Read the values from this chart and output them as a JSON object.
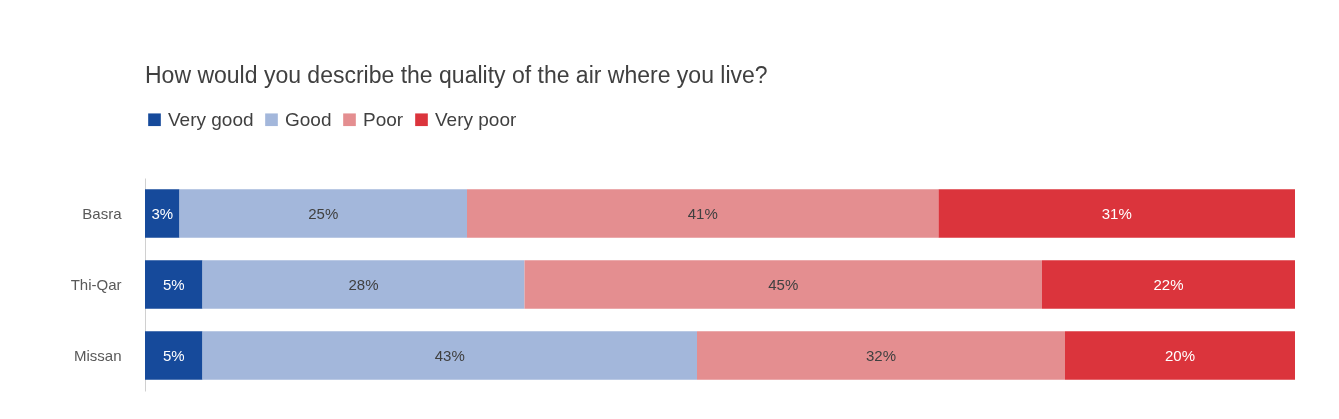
{
  "chart_data": {
    "type": "bar",
    "title": "How would you describe the quality of the air where you live?",
    "orientation": "horizontal",
    "stacked": true,
    "legend": "top left",
    "tick_labels": "y",
    "categories": [
      "Basra",
      "Thi-Qar",
      "Missan"
    ],
    "series": [
      {
        "name": "Very good",
        "color": "#164a9b",
        "values": [
          3,
          5,
          5
        ],
        "value_labels": [
          "3%",
          "5%",
          "5%"
        ]
      },
      {
        "name": "Good",
        "color": "#a3b7db",
        "values": [
          25,
          28,
          43
        ],
        "value_labels": [
          "25%",
          "28%",
          "43%"
        ]
      },
      {
        "name": "Poor",
        "color": "#e48e90",
        "values": [
          41,
          45,
          32
        ],
        "value_labels": [
          "41%",
          "45%",
          "32%"
        ]
      },
      {
        "name": "Very poor",
        "color": "#db343c",
        "values": [
          31,
          22,
          20
        ],
        "value_labels": [
          "31%",
          "22%",
          "20%"
        ]
      }
    ]
  }
}
